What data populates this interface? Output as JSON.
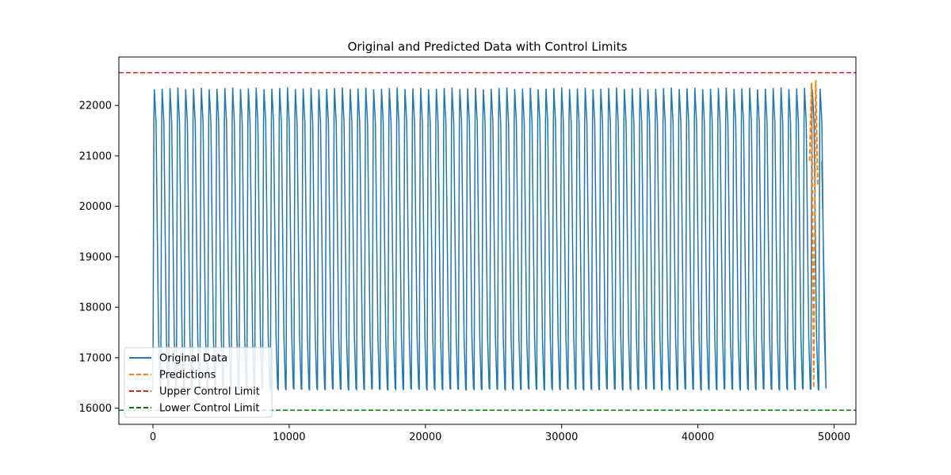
{
  "chart_data": {
    "type": "line",
    "title": "Original and Predicted Data with Control Limits",
    "xlabel": "",
    "ylabel": "",
    "xlim": [
      -2500,
      51600
    ],
    "ylim": [
      15680,
      22960
    ],
    "x_ticks": [
      0,
      10000,
      20000,
      30000,
      40000,
      50000
    ],
    "x_tick_labels": [
      "0",
      "10000",
      "20000",
      "30000",
      "40000",
      "50000"
    ],
    "y_ticks": [
      16000,
      17000,
      18000,
      19000,
      20000,
      21000,
      22000
    ],
    "y_tick_labels": [
      "16000",
      "17000",
      "18000",
      "19000",
      "20000",
      "21000",
      "22000"
    ],
    "grid": false,
    "legend_position": "lower-left",
    "series": [
      {
        "name": "Original Data",
        "color": "#1f77b4",
        "style": "solid",
        "x_start": 0,
        "x_end": 49100,
        "period": 575,
        "low": 16350,
        "high": 22320
      },
      {
        "name": "Predictions",
        "color": "#ff7f0e",
        "style": "dashed",
        "x": [
          48200,
          48350,
          48500,
          48650,
          48800
        ],
        "y": [
          20900,
          22450,
          16400,
          22500,
          20400
        ]
      },
      {
        "name": "Upper Control Limit",
        "color": "#d62728",
        "style": "dashed",
        "value": 22650
      },
      {
        "name": "Lower Control Limit",
        "color": "#008000",
        "style": "dashed",
        "value": 15960
      }
    ]
  }
}
